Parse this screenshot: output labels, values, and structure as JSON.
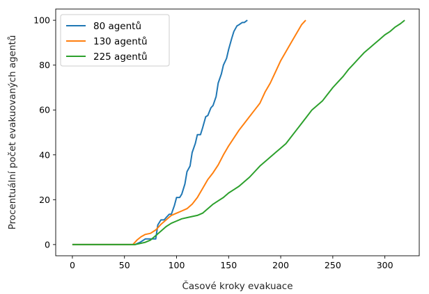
{
  "chart_data": {
    "type": "line",
    "title": "",
    "xlabel": "Časové kroky evakuace",
    "ylabel": "Procentuální počet evakuovaných agentů",
    "xlim": [
      -16,
      333
    ],
    "ylim": [
      -5,
      105
    ],
    "xticks": [
      0,
      50,
      100,
      150,
      200,
      250,
      300
    ],
    "yticks": [
      0,
      20,
      40,
      60,
      80,
      100
    ],
    "grid": false,
    "legend_position": "upper left",
    "series": [
      {
        "name": "80 agentů",
        "color": "#1f77b4",
        "x": [
          0,
          60,
          65,
          70,
          75,
          80,
          82,
          85,
          88,
          90,
          93,
          95,
          98,
          100,
          103,
          105,
          108,
          110,
          113,
          115,
          118,
          120,
          123,
          125,
          128,
          130,
          133,
          135,
          138,
          140,
          143,
          145,
          148,
          150,
          153,
          155,
          158,
          160,
          163,
          165,
          168
        ],
        "y": [
          0,
          0,
          1,
          2.5,
          2.5,
          2.5,
          8.75,
          11,
          11,
          12,
          13.5,
          13.5,
          17.5,
          21,
          21,
          22.5,
          27,
          32.5,
          35,
          41,
          45,
          49,
          49,
          52,
          57,
          57.5,
          61,
          62,
          66,
          72,
          76,
          80,
          83,
          87,
          92,
          95,
          97.5,
          98,
          99,
          99,
          100
        ]
      },
      {
        "name": "130 agentů",
        "color": "#ff7f0e",
        "x": [
          0,
          58,
          62,
          66,
          70,
          75,
          80,
          85,
          90,
          95,
          100,
          105,
          110,
          115,
          120,
          125,
          130,
          135,
          140,
          145,
          150,
          155,
          160,
          165,
          170,
          175,
          180,
          185,
          190,
          195,
          200,
          205,
          210,
          215,
          220,
          224
        ],
        "y": [
          0,
          0,
          2,
          3.5,
          4.5,
          5,
          6.5,
          9,
          11,
          13,
          14,
          15,
          16,
          18,
          21,
          25,
          29,
          32,
          35.5,
          40,
          44,
          47.5,
          51,
          54,
          57,
          60,
          63,
          68,
          72,
          77,
          82,
          86,
          90,
          94,
          98,
          100
        ]
      },
      {
        "name": "225 agentů",
        "color": "#2ca02c",
        "x": [
          0,
          60,
          65,
          70,
          75,
          80,
          85,
          90,
          95,
          100,
          105,
          110,
          115,
          120,
          125,
          130,
          135,
          140,
          145,
          150,
          155,
          160,
          165,
          170,
          175,
          180,
          185,
          190,
          195,
          200,
          205,
          210,
          215,
          220,
          225,
          230,
          235,
          240,
          245,
          250,
          255,
          260,
          265,
          270,
          275,
          280,
          285,
          290,
          295,
          300,
          305,
          310,
          315,
          319
        ],
        "y": [
          0,
          0,
          0.5,
          1,
          2,
          4,
          6,
          8,
          9.5,
          10.5,
          11.5,
          12,
          12.5,
          13,
          14,
          16,
          18,
          19.5,
          21,
          23,
          24.5,
          26,
          28,
          30,
          32.5,
          35,
          37,
          39,
          41,
          43,
          45,
          48,
          51,
          54,
          57,
          60,
          62,
          64,
          67,
          70,
          72.5,
          75,
          78,
          80.5,
          83,
          85.5,
          87.5,
          89.5,
          91.5,
          93.5,
          95,
          97,
          98.5,
          100
        ]
      }
    ]
  }
}
